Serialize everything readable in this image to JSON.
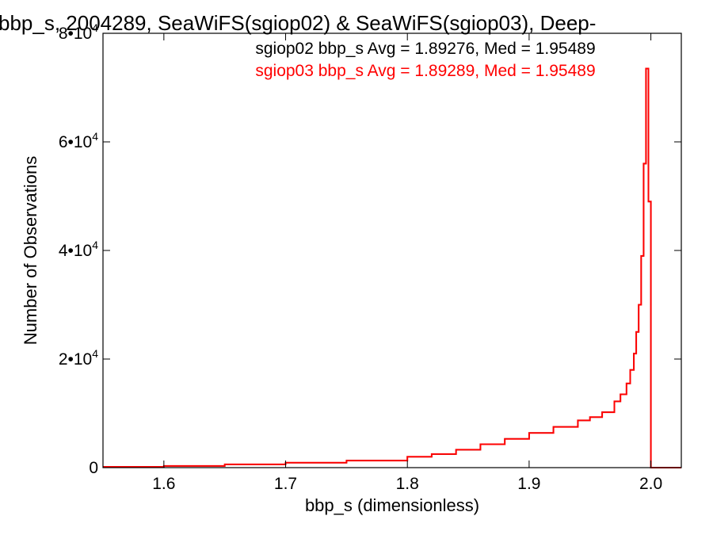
{
  "chart_data": {
    "type": "line",
    "title": "bbp_s, 2004289, SeaWiFS(sgiop02) & SeaWiFS(sgiop03), Deep-",
    "xlabel": "bbp_s (dimensionless)",
    "ylabel": "Number of Observations",
    "xlim": [
      1.55,
      2.025
    ],
    "ylim": [
      0,
      80000
    ],
    "x_ticks": [
      {
        "value": 1.6,
        "label": "1.6"
      },
      {
        "value": 1.7,
        "label": "1.7"
      },
      {
        "value": 1.8,
        "label": "1.8"
      },
      {
        "value": 1.9,
        "label": "1.9"
      },
      {
        "value": 2.0,
        "label": "2.0"
      }
    ],
    "y_ticks": [
      {
        "value": 0,
        "mantissa": "0",
        "exponent": ""
      },
      {
        "value": 20000,
        "mantissa": "2•10",
        "exponent": "4"
      },
      {
        "value": 40000,
        "mantissa": "4•10",
        "exponent": "4"
      },
      {
        "value": 60000,
        "mantissa": "6•10",
        "exponent": "4"
      },
      {
        "value": 80000,
        "mantissa": "8•10",
        "exponent": "4"
      }
    ],
    "grid": false,
    "annotations": [
      {
        "text": "sgiop02 bbp_s Avg = 1.89276, Med = 1.95489",
        "color": "#000000"
      },
      {
        "text": "sgiop03 bbp_s Avg = 1.89289, Med = 1.95489",
        "color": "#ff0000"
      }
    ],
    "series": [
      {
        "color": "#000000",
        "x": [
          1.55,
          1.6,
          1.65,
          1.7,
          1.75,
          1.8,
          1.82,
          1.84,
          1.86,
          1.88,
          1.9,
          1.92,
          1.94,
          1.95,
          1.96,
          1.97,
          1.975,
          1.98,
          1.983,
          1.986,
          1.988,
          1.99,
          1.992,
          1.994,
          1.996,
          1.998,
          2.0,
          2.025
        ],
        "values": [
          150,
          300,
          600,
          900,
          1300,
          2000,
          2500,
          3300,
          4300,
          5300,
          6400,
          7500,
          8700,
          9300,
          10200,
          12200,
          13500,
          15500,
          18000,
          21000,
          25000,
          30000,
          39000,
          56000,
          73500,
          49000,
          0,
          0
        ]
      },
      {
        "color": "#ff0000",
        "x": [
          1.55,
          1.6,
          1.65,
          1.7,
          1.75,
          1.8,
          1.82,
          1.84,
          1.86,
          1.88,
          1.9,
          1.92,
          1.94,
          1.95,
          1.96,
          1.97,
          1.975,
          1.98,
          1.983,
          1.986,
          1.988,
          1.99,
          1.992,
          1.994,
          1.996,
          1.998,
          2.0,
          2.025
        ],
        "values": [
          150,
          300,
          600,
          900,
          1300,
          2000,
          2500,
          3300,
          4300,
          5300,
          6400,
          7500,
          8700,
          9300,
          10200,
          12200,
          13500,
          15500,
          18000,
          21000,
          25000,
          30000,
          39000,
          56000,
          73500,
          49000,
          0,
          0
        ]
      }
    ]
  }
}
